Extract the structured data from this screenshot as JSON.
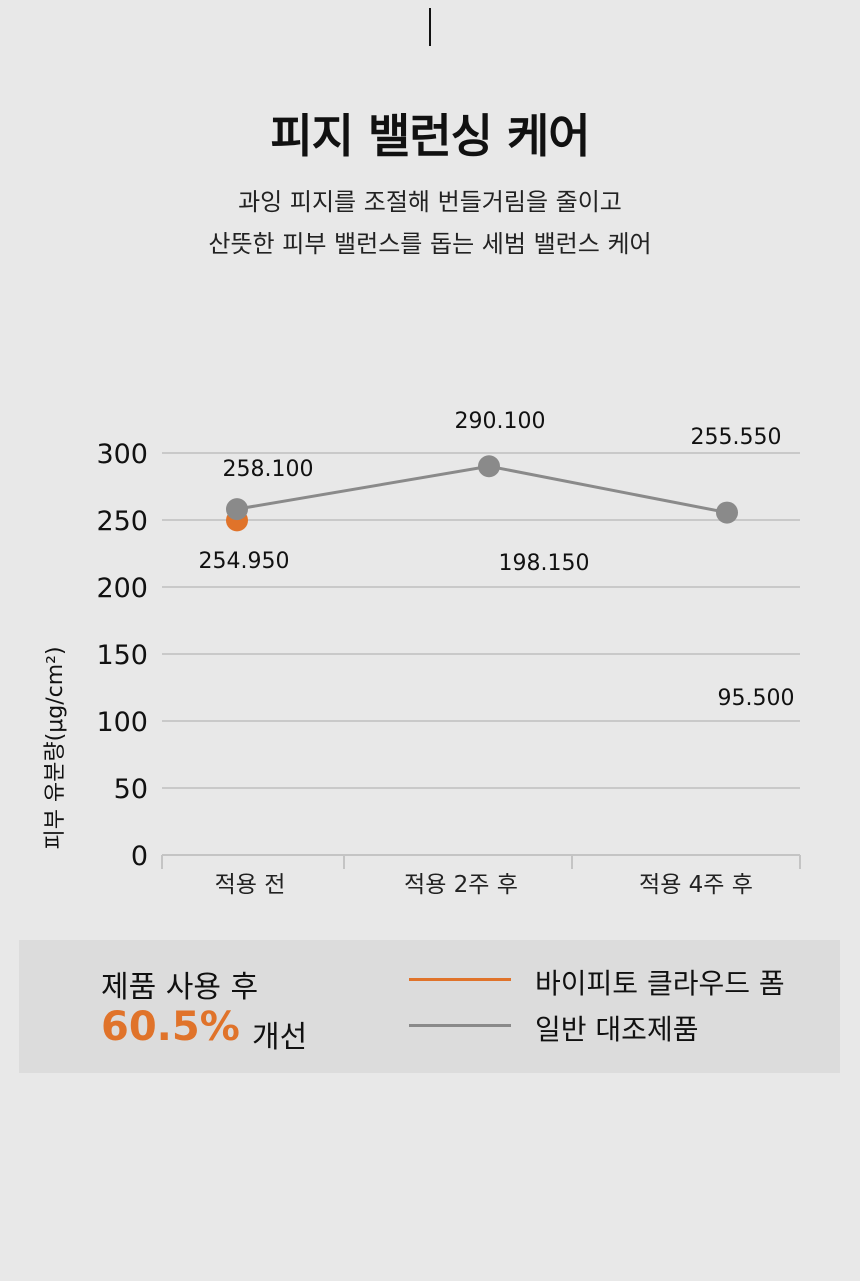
{
  "header": {
    "title": "피지 밸런싱 케어",
    "subtitle_line1": "과잉 피지를 조절해 번들거림을 줄이고",
    "subtitle_line2": "산뜻한 피부 밸런스를 돕는 세범 밸런스 케어"
  },
  "chart_data": {
    "type": "line",
    "categories": [
      "적용 전",
      "적용 2주 후",
      "적용 4주 후"
    ],
    "ylabel": "피부 유분량(μg/cm²)",
    "ylim": [
      0,
      300
    ],
    "yticks": [
      "0",
      "50",
      "100",
      "150",
      "200",
      "250",
      "300"
    ],
    "grid": true,
    "series": [
      {
        "name": "바이피토 클라우드 폼",
        "color": "#e0732a",
        "values": [
          254.95,
          198.15,
          95.5
        ],
        "labels": [
          "254.950",
          "198.150",
          "95.500"
        ]
      },
      {
        "name": "일반 대조제품",
        "color": "#8a8a8a",
        "values": [
          258.1,
          290.1,
          255.55
        ],
        "labels": [
          "258.100",
          "290.100",
          "255.550"
        ]
      }
    ]
  },
  "summary": {
    "label": "제품 사용 후",
    "value": "60.5%",
    "suffix": "개선"
  },
  "legend": {
    "product": "바이피토 클라우드 폼",
    "control": "일반 대조제품"
  }
}
